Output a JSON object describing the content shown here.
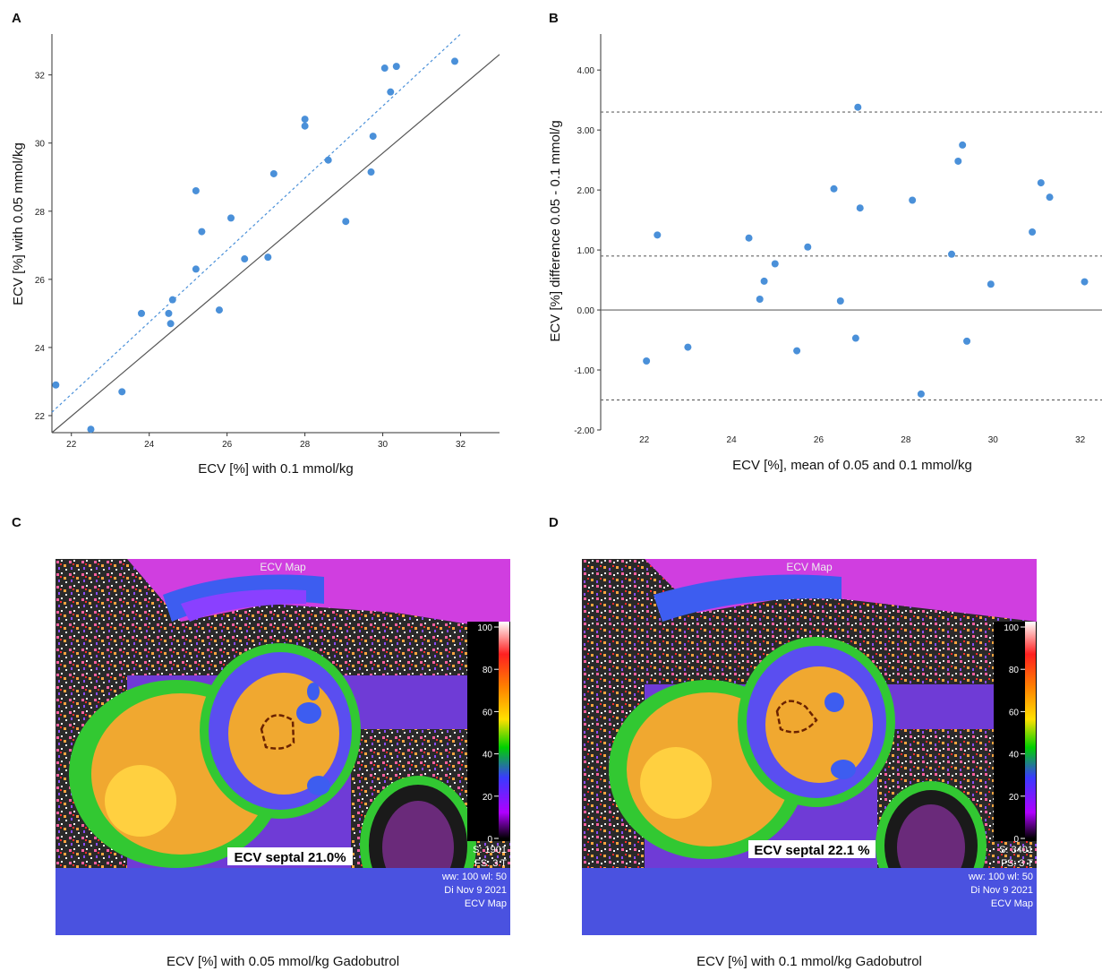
{
  "panels": {
    "A": {
      "letter": "A",
      "xlabel": "ECV [%] with 0.1 mmol/kg",
      "ylabel": "ECV [%] with 0.05 mmol/kg"
    },
    "B": {
      "letter": "B",
      "xlabel": "ECV [%], mean of 0.05 and 0.1 mmol/kg",
      "ylabel": "ECV [%] difference 0.05 - 0.1 mmol/g"
    },
    "C": {
      "letter": "C",
      "header": "ECV Map",
      "roi_label": "ECV septal 21.0%",
      "info": [
        "S: 1901",
        "FS: 3 T",
        "ww: 100 wl: 50",
        "Di Nov 9 2021",
        "ECV Map"
      ],
      "caption": "ECV [%] with 0.05 mmol/kg Gadobutrol"
    },
    "D": {
      "letter": "D",
      "header": "ECV Map",
      "roi_label": "ECV septal 22.1 %",
      "info": [
        "S: 3401",
        "FS: 3 T",
        "ww: 100 wl: 50",
        "Di Nov 9 2021",
        "ECV Map"
      ],
      "caption": "ECV [%] with 0.1 mmol/kg Gadobutrol"
    }
  },
  "colorbar": {
    "ticks": [
      "100",
      "80",
      "60",
      "40",
      "20",
      "0"
    ]
  },
  "colors": {
    "point": "#4a90d9",
    "fit_line": "#4a90d9",
    "identity_line": "#555555",
    "ref_line": "#666666"
  },
  "chart_data": [
    {
      "type": "scatter",
      "xlabel": "ECV [%] with 0.1 mmol/kg",
      "ylabel": "ECV [%] with 0.05 mmol/kg",
      "xlim": [
        21.5,
        33
      ],
      "ylim": [
        21.5,
        33.2
      ],
      "xticks": [
        "22",
        "24",
        "26",
        "28",
        "30",
        "32"
      ],
      "yticks": [
        "22",
        "24",
        "26",
        "28",
        "30",
        "32"
      ],
      "points": [
        [
          21.6,
          22.9
        ],
        [
          22.5,
          21.6
        ],
        [
          23.3,
          22.7
        ],
        [
          23.8,
          25.0
        ],
        [
          24.5,
          25.0
        ],
        [
          24.55,
          24.7
        ],
        [
          24.6,
          25.4
        ],
        [
          25.2,
          28.6
        ],
        [
          25.2,
          26.3
        ],
        [
          25.35,
          27.4
        ],
        [
          25.8,
          25.1
        ],
        [
          26.1,
          27.8
        ],
        [
          26.45,
          26.6
        ],
        [
          27.05,
          26.65
        ],
        [
          27.2,
          29.1
        ],
        [
          28.0,
          30.7
        ],
        [
          28.0,
          30.5
        ],
        [
          28.6,
          29.5
        ],
        [
          29.05,
          27.7
        ],
        [
          29.7,
          29.15
        ],
        [
          29.75,
          30.2
        ],
        [
          30.05,
          32.2
        ],
        [
          30.2,
          31.5
        ],
        [
          30.35,
          32.25
        ],
        [
          31.85,
          32.4
        ]
      ],
      "reference_lines": [
        {
          "name": "identity",
          "x": [
            21.5,
            33
          ],
          "y": [
            21.5,
            32.6
          ]
        },
        {
          "name": "fit",
          "x": [
            21.5,
            32
          ],
          "y": [
            22.1,
            33.2
          ]
        }
      ]
    },
    {
      "type": "scatter",
      "xlabel": "ECV [%], mean of 0.05 and 0.1 mmol/kg",
      "ylabel": "ECV [%] difference 0.05 - 0.1 mmol/g",
      "xlim": [
        21,
        32.5
      ],
      "ylim": [
        -2.0,
        4.6
      ],
      "xticks": [
        "22",
        "24",
        "26",
        "28",
        "30",
        "32"
      ],
      "yticks": [
        "4.00",
        "3.00",
        "2.00",
        "1.00",
        "0.00",
        "-1.00",
        "-2.00"
      ],
      "points": [
        [
          22.05,
          -0.85
        ],
        [
          22.3,
          1.25
        ],
        [
          23.0,
          -0.62
        ],
        [
          24.4,
          1.2
        ],
        [
          24.65,
          0.18
        ],
        [
          24.75,
          0.48
        ],
        [
          25.0,
          0.77
        ],
        [
          25.5,
          -0.68
        ],
        [
          25.75,
          1.05
        ],
        [
          26.35,
          2.02
        ],
        [
          26.5,
          0.15
        ],
        [
          26.85,
          -0.47
        ],
        [
          26.9,
          3.38
        ],
        [
          26.95,
          1.7
        ],
        [
          28.15,
          1.83
        ],
        [
          28.35,
          -1.4
        ],
        [
          29.05,
          0.93
        ],
        [
          29.2,
          2.48
        ],
        [
          29.3,
          2.75
        ],
        [
          29.4,
          -0.52
        ],
        [
          29.95,
          0.43
        ],
        [
          30.9,
          1.3
        ],
        [
          31.1,
          2.12
        ],
        [
          31.3,
          1.88
        ],
        [
          32.1,
          0.47
        ]
      ],
      "reference_lines": [
        {
          "name": "upper-limit",
          "y": 3.3
        },
        {
          "name": "mean",
          "y": 0.9
        },
        {
          "name": "zero",
          "y": 0.0
        },
        {
          "name": "lower-limit",
          "y": -1.5
        }
      ]
    }
  ]
}
